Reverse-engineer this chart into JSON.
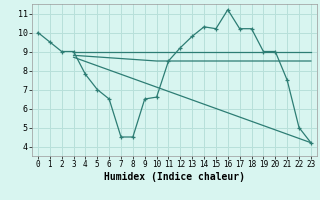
{
  "xlabel": "Humidex (Indice chaleur)",
  "background_color": "#d8f5f0",
  "line_color": "#2d7d74",
  "grid_color": "#b8e0da",
  "xlim": [
    -0.5,
    23.5
  ],
  "ylim": [
    3.5,
    11.5
  ],
  "xticks": [
    0,
    1,
    2,
    3,
    4,
    5,
    6,
    7,
    8,
    9,
    10,
    11,
    12,
    13,
    14,
    15,
    16,
    17,
    18,
    19,
    20,
    21,
    22,
    23
  ],
  "yticks": [
    4,
    5,
    6,
    7,
    8,
    9,
    10,
    11
  ],
  "line1_x": [
    0,
    1,
    2,
    3,
    4,
    5,
    6,
    7,
    8,
    9,
    10,
    11,
    12,
    13,
    14,
    15,
    16,
    17,
    18,
    19,
    20,
    21,
    22,
    23
  ],
  "line1_y": [
    10,
    9.5,
    9,
    9,
    7.8,
    7,
    6.5,
    4.5,
    4.5,
    6.5,
    6.6,
    8.5,
    9.2,
    9.8,
    10.3,
    10.2,
    11.2,
    10.2,
    10.2,
    9.0,
    9.0,
    7.5,
    5.0,
    4.2
  ],
  "line2_x": [
    3,
    23
  ],
  "line2_y": [
    9.0,
    9.0
  ],
  "line3_x": [
    3,
    10,
    23
  ],
  "line3_y": [
    8.8,
    8.5,
    8.5
  ],
  "line4_x": [
    3,
    23
  ],
  "line4_y": [
    8.7,
    4.2
  ]
}
